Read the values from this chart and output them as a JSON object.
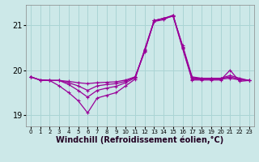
{
  "background_color": "#cce8e8",
  "grid_color": "#aad4d4",
  "line_color": "#990099",
  "xlabel": "Windchill (Refroidissement éolien,°C)",
  "xlabel_fontsize": 7,
  "xlim_min": -0.5,
  "xlim_max": 23.5,
  "ylim_min": 18.75,
  "ylim_max": 21.45,
  "yticks": [
    19,
    20,
    21
  ],
  "ytick_fontsize": 7,
  "xtick_fontsize": 5,
  "series": [
    [
      19.85,
      19.78,
      19.77,
      19.77,
      19.75,
      19.72,
      19.7,
      19.72,
      19.73,
      19.74,
      19.78,
      19.85,
      20.4,
      21.1,
      21.15,
      21.2,
      20.55,
      19.85,
      19.82,
      19.82,
      19.82,
      19.88,
      19.82,
      19.77
    ],
    [
      19.85,
      19.78,
      19.77,
      19.77,
      19.72,
      19.65,
      19.55,
      19.65,
      19.68,
      19.7,
      19.75,
      19.85,
      20.42,
      21.1,
      21.15,
      21.22,
      20.52,
      19.83,
      19.81,
      19.81,
      19.81,
      19.85,
      19.8,
      19.77
    ],
    [
      19.85,
      19.78,
      19.77,
      19.77,
      19.68,
      19.55,
      19.4,
      19.55,
      19.6,
      19.64,
      19.72,
      19.83,
      20.44,
      21.08,
      21.12,
      21.22,
      20.5,
      19.8,
      19.8,
      19.8,
      19.8,
      19.82,
      19.78,
      19.77
    ],
    [
      19.85,
      19.78,
      19.77,
      19.65,
      19.5,
      19.32,
      19.05,
      19.38,
      19.44,
      19.5,
      19.65,
      19.8,
      20.46,
      21.1,
      21.15,
      21.2,
      20.48,
      19.78,
      19.78,
      19.78,
      19.78,
      20.0,
      19.75,
      19.77
    ]
  ]
}
